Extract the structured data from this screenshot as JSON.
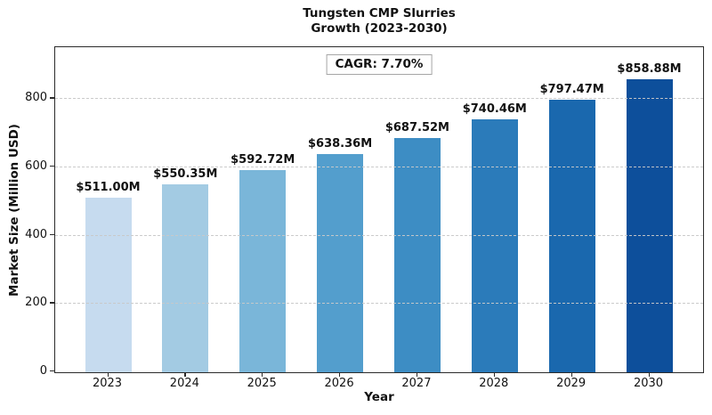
{
  "chart_data": {
    "type": "bar",
    "title": "Tungsten CMP Slurries Growth (2023-2030)",
    "title_lines": [
      "Tungsten CMP Slurries",
      "Growth (2023-2030)"
    ],
    "annotation": "CAGR: 7.70%",
    "xlabel": "Year",
    "ylabel": "Market Size (Million USD)",
    "categories": [
      "2023",
      "2024",
      "2025",
      "2026",
      "2027",
      "2028",
      "2029",
      "2030"
    ],
    "values": [
      511.0,
      550.35,
      592.72,
      638.36,
      687.52,
      740.46,
      797.47,
      858.88
    ],
    "value_labels": [
      "$511.00M",
      "$550.35M",
      "$592.72M",
      "$638.36M",
      "$687.52M",
      "$740.46M",
      "$797.47M",
      "$858.88M"
    ],
    "bar_colors": [
      "#c6dbef",
      "#a3cbe3",
      "#7ab6d9",
      "#539ecd",
      "#3d8dc4",
      "#2b7bba",
      "#1a68ae",
      "#0d4f9b"
    ],
    "yticks": [
      0,
      200,
      400,
      600,
      800
    ],
    "ylim": [
      0,
      950
    ],
    "grid": {
      "axis": "y",
      "style": "dashed",
      "color": "#c9c9c9",
      "above_bars": true
    },
    "legend": "none",
    "spines": "full-box"
  }
}
